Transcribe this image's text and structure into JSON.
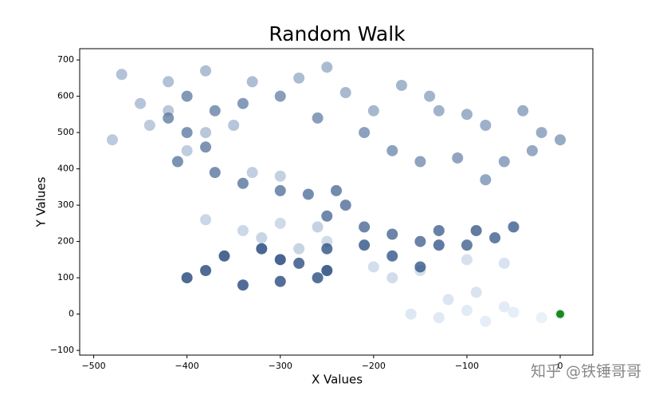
{
  "chart_data": {
    "type": "scatter",
    "title": "Random Walk",
    "x_label": "X Values",
    "y_label": "Y Values",
    "x": [
      0,
      -20,
      -50,
      -80,
      -60,
      -100,
      -130,
      -160,
      -120,
      -90,
      -60,
      -100,
      -150,
      -200,
      -180,
      -250,
      -300,
      -340,
      -380,
      -320,
      -280,
      -260,
      -300,
      -330,
      -400,
      -440,
      -480,
      -420,
      -380,
      -350,
      -450,
      -470,
      -420,
      -380,
      -330,
      -280,
      -250,
      -230,
      -200,
      -170,
      -140,
      -130,
      -100,
      -80,
      -40,
      -20,
      0,
      -30,
      -60,
      -80,
      -110,
      -150,
      -180,
      -210,
      -260,
      -300,
      -340,
      -370,
      -400,
      -420,
      -400,
      -380,
      -410,
      -370,
      -340,
      -300,
      -270,
      -240,
      -230,
      -250,
      -210,
      -180,
      -150,
      -130,
      -100,
      -70,
      -50,
      -90,
      -130,
      -150,
      -180,
      -210,
      -250,
      -280,
      -260,
      -300,
      -340,
      -380,
      -400,
      -360,
      -320,
      -300,
      -250
    ],
    "y": [
      0,
      -10,
      5,
      -20,
      20,
      10,
      -10,
      0,
      40,
      60,
      140,
      150,
      120,
      130,
      100,
      200,
      250,
      230,
      260,
      210,
      180,
      240,
      380,
      390,
      450,
      520,
      480,
      560,
      500,
      520,
      580,
      660,
      640,
      670,
      640,
      650,
      680,
      610,
      560,
      630,
      600,
      560,
      550,
      520,
      560,
      500,
      480,
      450,
      420,
      370,
      430,
      420,
      450,
      500,
      540,
      600,
      580,
      560,
      600,
      540,
      500,
      460,
      420,
      390,
      360,
      340,
      330,
      340,
      300,
      270,
      240,
      220,
      200,
      230,
      190,
      210,
      240,
      230,
      190,
      130,
      160,
      190,
      180,
      140,
      100,
      90,
      80,
      120,
      100,
      160,
      180,
      150,
      120
    ],
    "colormap": [
      "#e3eef9",
      "#08306b"
    ],
    "start_point": {
      "x": 0,
      "y": 0,
      "color": "#1a8a1a"
    },
    "xlim": [
      -515,
      35
    ],
    "ylim": [
      -113,
      731
    ],
    "xticks": [
      {
        "value": -500,
        "label": "−500"
      },
      {
        "value": -400,
        "label": "−400"
      },
      {
        "value": -300,
        "label": "−300"
      },
      {
        "value": -200,
        "label": "−200"
      },
      {
        "value": -100,
        "label": "−100"
      },
      0
    ],
    "yticks": [
      {
        "value": -100,
        "label": "−100"
      },
      0,
      100,
      200,
      300,
      400,
      500,
      600,
      700
    ],
    "watermark": "知乎 @铁锤哥哥"
  }
}
